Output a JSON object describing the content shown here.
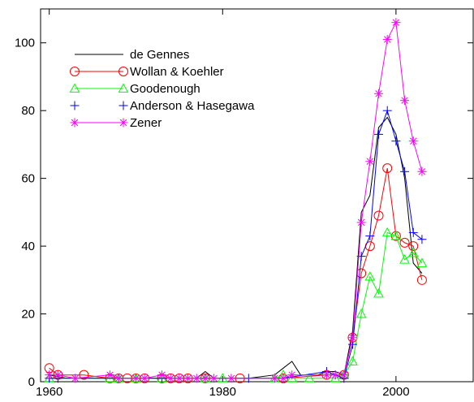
{
  "chart_data": {
    "type": "line",
    "title": "",
    "xlabel": "",
    "ylabel": "",
    "xlim": [
      1959,
      2009
    ],
    "ylim": [
      0,
      110
    ],
    "xticks": [
      1960,
      1980,
      2000
    ],
    "yticks": [
      0,
      20,
      40,
      60,
      80,
      100
    ],
    "grid": false,
    "legend": "top-left",
    "series": [
      {
        "name": "de Gennes",
        "color": "#000000",
        "marker": "none",
        "x": [
          1960,
          1962,
          1966,
          1968,
          1970,
          1974,
          1976,
          1977,
          1978,
          1979,
          1980,
          1983,
          1986,
          1987,
          1988,
          1989,
          1991,
          1992,
          1993,
          1994,
          1995,
          1996,
          1997,
          1998,
          1999,
          2000,
          2001,
          2002,
          2003
        ],
        "y": [
          2,
          1,
          1,
          1,
          1,
          1,
          1,
          1,
          3,
          1,
          1,
          1,
          2,
          4,
          6,
          2,
          2,
          3,
          3,
          2,
          15,
          50,
          55,
          75,
          78,
          73,
          60,
          35,
          32
        ]
      },
      {
        "name": "Wollan & Koehler",
        "color": "#ff0000",
        "marker": "circle",
        "x": [
          1960,
          1961,
          1964,
          1967,
          1968,
          1969,
          1970,
          1971,
          1973,
          1974,
          1975,
          1976,
          1978,
          1982,
          1987,
          1992,
          1994,
          1995,
          1996,
          1997,
          1998,
          1999,
          2000,
          2001,
          2002,
          2003
        ],
        "y": [
          4,
          2,
          2,
          1,
          1,
          1,
          1,
          1,
          1,
          1,
          1,
          1,
          1,
          1,
          1,
          2,
          2,
          13,
          32,
          40,
          49,
          63,
          43,
          41,
          40,
          30
        ]
      },
      {
        "name": "Goodenough",
        "color": "#00ff00",
        "marker": "triangle",
        "x": [
          1960,
          1967,
          1968,
          1970,
          1973,
          1978,
          1980,
          1986,
          1987,
          1988,
          1990,
          1993,
          1994,
          1995,
          1996,
          1997,
          1998,
          1999,
          2000,
          2001,
          2002,
          2003
        ],
        "y": [
          1,
          1,
          1,
          1,
          1,
          1,
          1,
          1,
          2,
          1,
          1,
          1,
          2,
          6,
          20,
          31,
          26,
          44,
          43,
          36,
          38,
          35
        ]
      },
      {
        "name": "Anderson & Hasegawa",
        "color": "#0000ff",
        "marker": "plus",
        "x": [
          1960,
          1961,
          1968,
          1973,
          1978,
          1983,
          1987,
          1992,
          1993,
          1994,
          1995,
          1996,
          1997,
          1998,
          1999,
          2000,
          2001,
          2002,
          2003
        ],
        "y": [
          1,
          1,
          1,
          1,
          1,
          1,
          1,
          3,
          2,
          1,
          11,
          37,
          43,
          73,
          80,
          71,
          62,
          44,
          42
        ]
      },
      {
        "name": "Zener",
        "color": "#ff00ff",
        "marker": "star",
        "x": [
          1960,
          1961,
          1963,
          1967,
          1968,
          1970,
          1971,
          1973,
          1974,
          1975,
          1976,
          1977,
          1978,
          1979,
          1981,
          1986,
          1987,
          1988,
          1992,
          1993,
          1994,
          1995,
          1996,
          1997,
          1998,
          1999,
          2000,
          2001,
          2002,
          2003
        ],
        "y": [
          2,
          2,
          1,
          2,
          1,
          1,
          1,
          2,
          1,
          1,
          1,
          1,
          1,
          1,
          1,
          1,
          1,
          2,
          2,
          2,
          2,
          13,
          47,
          65,
          85,
          101,
          106,
          83,
          71,
          62
        ]
      }
    ]
  }
}
